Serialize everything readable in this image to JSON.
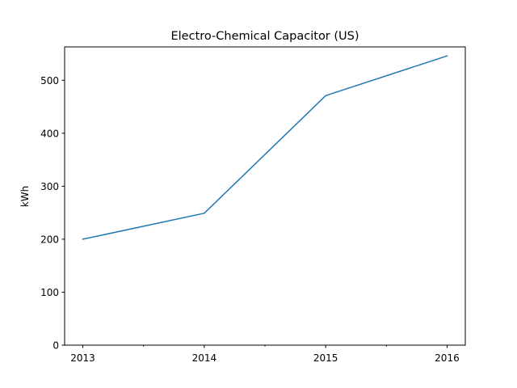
{
  "chart_data": {
    "type": "line",
    "title": "Electro-Chemical Capacitor (US)",
    "xlabel": "",
    "ylabel": "kWh",
    "x": [
      2013,
      2014,
      2015,
      2016
    ],
    "x_tick_labels": [
      "2013",
      "2014",
      "2015",
      "2016"
    ],
    "x_minor_ticks": [
      2013.5,
      2014.5,
      2015.5
    ],
    "xlim": [
      2012.85,
      2016.15
    ],
    "series": [
      {
        "values": [
          200,
          249,
          471,
          546
        ],
        "color": "#1f77b4"
      }
    ],
    "y_ticks": [
      0,
      100,
      200,
      300,
      400,
      500
    ],
    "y_tick_labels": [
      "0",
      "100",
      "200",
      "300",
      "400",
      "500"
    ],
    "ylim": [
      0,
      563
    ],
    "grid": false,
    "legend": "none"
  }
}
